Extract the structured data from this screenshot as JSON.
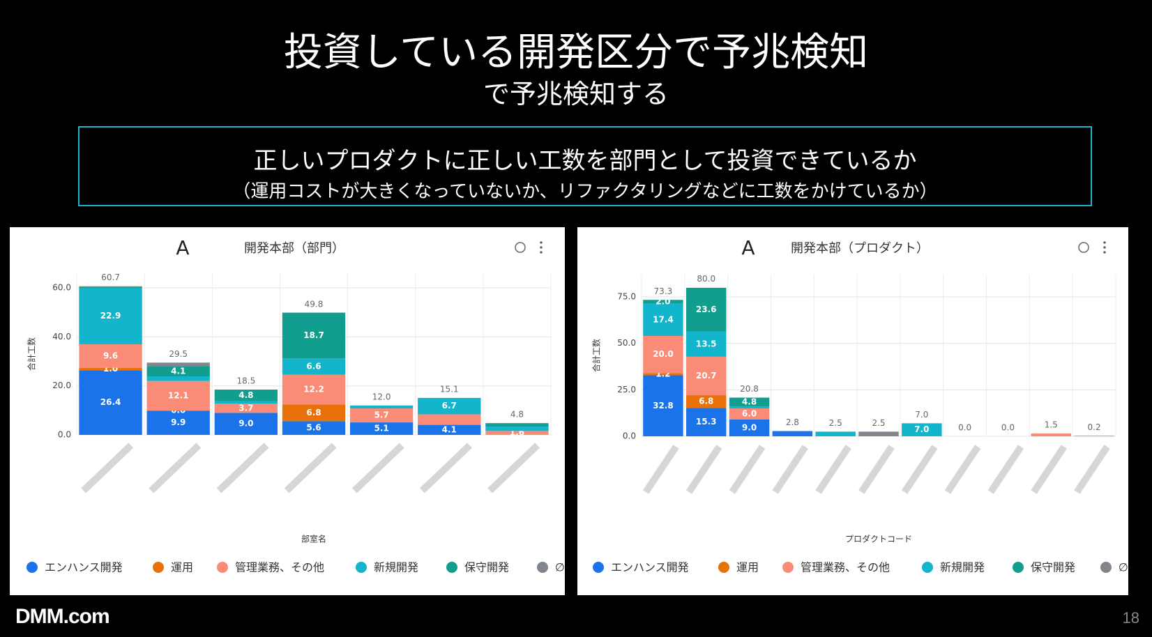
{
  "title": "投資している開発区分で予兆検知",
  "subtitle": "で予兆検知する",
  "box": {
    "line1": "正しいプロダクトに正しい工数を部門として投資できているか",
    "line2": "（運用コストが大きくなっていないか、リファクタリングなどに工数をかけているか）"
  },
  "logo": "DMM.com",
  "page_number": 18,
  "chart_data": [
    {
      "type": "bar",
      "stacked": true,
      "badge": "A",
      "title": "開発本部（部門）",
      "ylabel": "合計工数",
      "xlabel": "部室名",
      "grid": true,
      "legend": "bottom",
      "categories": [
        null,
        null,
        null,
        null,
        null,
        null,
        null
      ],
      "ylim": [
        0,
        66
      ],
      "yticks": [
        {
          "value": 0,
          "label": "0.0"
        },
        {
          "value": 20,
          "label": "20.0"
        },
        {
          "value": 40,
          "label": "40.0"
        },
        {
          "value": 60,
          "label": "60.0"
        }
      ],
      "series": [
        {
          "name": "エンハンス開発",
          "color": "#1a73e8",
          "values": [
            26.4,
            9.9,
            9.0,
            5.6,
            5.1,
            4.1,
            0
          ],
          "value_labels": [
            "26.4",
            "9.9",
            "9.0",
            "5.6",
            "5.1",
            "4.1",
            null
          ]
        },
        {
          "name": "運用",
          "color": "#e8710a",
          "values": [
            1.0,
            0,
            0,
            6.8,
            0,
            0,
            0
          ],
          "value_labels": [
            "1.0",
            "0.0",
            null,
            "6.8",
            null,
            null,
            null
          ]
        },
        {
          "name": "管理業務、その他",
          "color": "#fa8b76",
          "values": [
            9.6,
            12.1,
            3.7,
            12.2,
            5.7,
            4.3,
            1.6
          ],
          "value_labels": [
            "9.6",
            "12.1",
            "3.7",
            "12.2",
            "5.7",
            null,
            "1.6"
          ]
        },
        {
          "name": "新規開発",
          "color": "#12b5cb",
          "values": [
            22.9,
            1.9,
            1.0,
            6.6,
            1.2,
            6.7,
            1.8
          ],
          "value_labels": [
            "22.9",
            null,
            null,
            "6.6",
            null,
            "6.7",
            null
          ]
        },
        {
          "name": "保守開発",
          "color": "#129e8f",
          "values": [
            0.5,
            4.1,
            4.8,
            18.7,
            0,
            0,
            1.4
          ],
          "value_labels": [
            null,
            "4.1",
            "4.8",
            "18.7",
            null,
            null,
            null
          ]
        },
        {
          "name": "∅",
          "color": "#80868b",
          "values": [
            0.3,
            1.5,
            0,
            0,
            0,
            0,
            0
          ],
          "value_labels": [
            null,
            null,
            null,
            null,
            null,
            null,
            null
          ]
        }
      ],
      "totals": [
        60.7,
        29.5,
        18.5,
        49.8,
        12.0,
        15.1,
        4.8
      ],
      "total_labels": [
        "60.7",
        "29.5",
        "18.5",
        "49.8",
        "12.0",
        "15.1",
        "4.8"
      ]
    },
    {
      "type": "bar",
      "stacked": true,
      "badge": "A",
      "title": "開発本部（プロダクト）",
      "ylabel": "合計工数",
      "xlabel": "プロダクトコード",
      "grid": true,
      "legend": "bottom",
      "categories": [
        null,
        null,
        null,
        null,
        null,
        null,
        null,
        null,
        null,
        null,
        null
      ],
      "ylim": [
        0,
        87
      ],
      "yticks": [
        {
          "value": 0,
          "label": "0.0"
        },
        {
          "value": 25,
          "label": "25.0"
        },
        {
          "value": 50,
          "label": "50.0"
        },
        {
          "value": 75,
          "label": "75.0"
        }
      ],
      "series": [
        {
          "name": "エンハンス開発",
          "color": "#1a73e8",
          "values": [
            32.8,
            15.3,
            9.0,
            2.8,
            0,
            0,
            0,
            0,
            0,
            0,
            0.2
          ],
          "value_labels": [
            "32.8",
            "15.3",
            "9.0",
            null,
            null,
            null,
            null,
            null,
            null,
            null,
            null
          ]
        },
        {
          "name": "運用",
          "color": "#e8710a",
          "values": [
            1.2,
            6.8,
            0,
            0,
            0,
            0,
            0,
            0,
            0,
            0,
            0
          ],
          "value_labels": [
            "1.2",
            "6.8",
            null,
            null,
            null,
            null,
            null,
            null,
            null,
            null,
            null
          ]
        },
        {
          "name": "管理業務、その他",
          "color": "#fa8b76",
          "values": [
            20.0,
            20.7,
            6.0,
            0,
            0,
            0,
            0,
            0,
            0,
            1.5,
            0
          ],
          "value_labels": [
            "20.0",
            "20.7",
            "6.0",
            null,
            null,
            null,
            null,
            null,
            null,
            null,
            null
          ]
        },
        {
          "name": "新規開発",
          "color": "#12b5cb",
          "values": [
            17.4,
            13.5,
            1.0,
            0,
            2.5,
            0,
            7.0,
            0,
            0,
            0,
            0
          ],
          "value_labels": [
            "17.4",
            "13.5",
            null,
            null,
            null,
            null,
            "7.0",
            null,
            null,
            null,
            null
          ]
        },
        {
          "name": "保守開発",
          "color": "#129e8f",
          "values": [
            2.0,
            23.6,
            4.8,
            0,
            0,
            0,
            0,
            0,
            0,
            0,
            0
          ],
          "value_labels": [
            "2.0",
            "23.6",
            "4.8",
            null,
            null,
            null,
            null,
            null,
            null,
            null,
            null
          ]
        },
        {
          "name": "∅",
          "color": "#80868b",
          "values": [
            0,
            0,
            0,
            0,
            0,
            2.5,
            0,
            0,
            0,
            0,
            0
          ],
          "value_labels": [
            null,
            null,
            null,
            null,
            null,
            null,
            null,
            null,
            null,
            null,
            null
          ]
        }
      ],
      "totals": [
        73.3,
        80.0,
        20.8,
        2.8,
        2.5,
        2.5,
        7.0,
        0.0,
        0.0,
        1.5,
        0.2
      ],
      "total_labels": [
        "73.3",
        "80.0",
        "20.8",
        "2.8",
        "2.5",
        "2.5",
        "7.0",
        "0.0",
        "0.0",
        "1.5",
        "0.2"
      ]
    }
  ]
}
